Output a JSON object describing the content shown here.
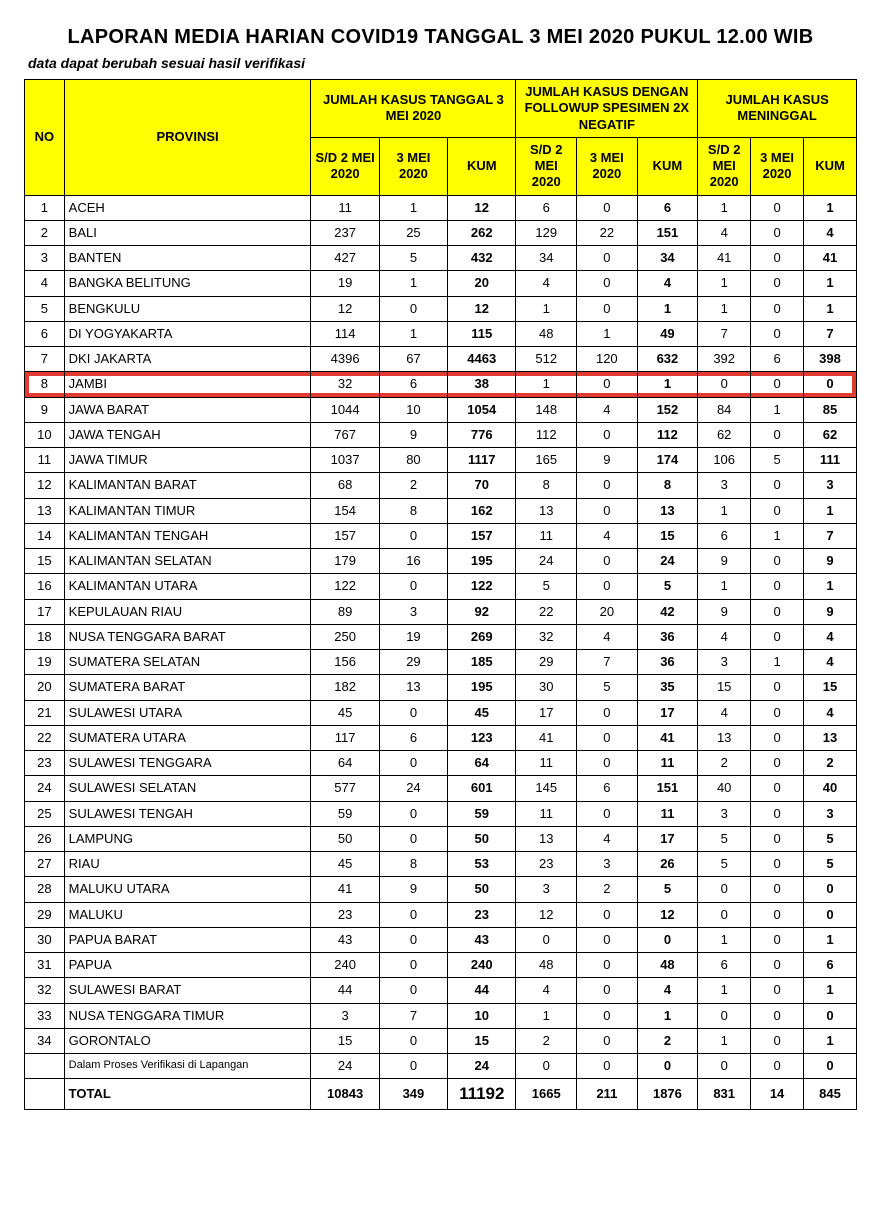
{
  "title": "LAPORAN MEDIA HARIAN COVID19 TANGGAL 3 MEI 2020 PUKUL 12.00 WIB",
  "subtitle": "data dapat berubah sesuai hasil verifikasi",
  "headers": {
    "no": "NO",
    "provinsi": "PROVINSI",
    "group1": "JUMLAH KASUS TANGGAL 3 MEI 2020",
    "group2": "JUMLAH KASUS DENGAN FOLLOWUP SPESIMEN 2X NEGATIF",
    "group3": "JUMLAH KASUS MENINGGAL",
    "sd2": "S/D 2 MEI 2020",
    "d3": "3 MEI 2020",
    "kum": "KUM"
  },
  "highlight_row_index": 7,
  "highlight_color": "#e23b33",
  "header_bg": "#ffff00",
  "verif_label": "Dalam Proses Verifikasi di Lapangan",
  "total_label": "TOTAL",
  "rows": [
    {
      "no": 1,
      "prov": "ACEH",
      "a": 11,
      "b": 1,
      "c": 12,
      "d": 6,
      "e": 0,
      "f": 6,
      "g": 1,
      "h": 0,
      "i": 1
    },
    {
      "no": 2,
      "prov": "BALI",
      "a": 237,
      "b": 25,
      "c": 262,
      "d": 129,
      "e": 22,
      "f": 151,
      "g": 4,
      "h": 0,
      "i": 4
    },
    {
      "no": 3,
      "prov": "BANTEN",
      "a": 427,
      "b": 5,
      "c": 432,
      "d": 34,
      "e": 0,
      "f": 34,
      "g": 41,
      "h": 0,
      "i": 41
    },
    {
      "no": 4,
      "prov": "BANGKA BELITUNG",
      "a": 19,
      "b": 1,
      "c": 20,
      "d": 4,
      "e": 0,
      "f": 4,
      "g": 1,
      "h": 0,
      "i": 1
    },
    {
      "no": 5,
      "prov": "BENGKULU",
      "a": 12,
      "b": 0,
      "c": 12,
      "d": 1,
      "e": 0,
      "f": 1,
      "g": 1,
      "h": 0,
      "i": 1
    },
    {
      "no": 6,
      "prov": "DI YOGYAKARTA",
      "a": 114,
      "b": 1,
      "c": 115,
      "d": 48,
      "e": 1,
      "f": 49,
      "g": 7,
      "h": 0,
      "i": 7
    },
    {
      "no": 7,
      "prov": "DKI JAKARTA",
      "a": 4396,
      "b": 67,
      "c": 4463,
      "d": 512,
      "e": 120,
      "f": 632,
      "g": 392,
      "h": 6,
      "i": 398
    },
    {
      "no": 8,
      "prov": "JAMBI",
      "a": 32,
      "b": 6,
      "c": 38,
      "d": 1,
      "e": 0,
      "f": 1,
      "g": 0,
      "h": 0,
      "i": 0
    },
    {
      "no": 9,
      "prov": "JAWA BARAT",
      "a": 1044,
      "b": 10,
      "c": 1054,
      "d": 148,
      "e": 4,
      "f": 152,
      "g": 84,
      "h": 1,
      "i": 85
    },
    {
      "no": 10,
      "prov": "JAWA TENGAH",
      "a": 767,
      "b": 9,
      "c": 776,
      "d": 112,
      "e": 0,
      "f": 112,
      "g": 62,
      "h": 0,
      "i": 62
    },
    {
      "no": 11,
      "prov": "JAWA TIMUR",
      "a": 1037,
      "b": 80,
      "c": 1117,
      "d": 165,
      "e": 9,
      "f": 174,
      "g": 106,
      "h": 5,
      "i": 111
    },
    {
      "no": 12,
      "prov": "KALIMANTAN BARAT",
      "a": 68,
      "b": 2,
      "c": 70,
      "d": 8,
      "e": 0,
      "f": 8,
      "g": 3,
      "h": 0,
      "i": 3
    },
    {
      "no": 13,
      "prov": "KALIMANTAN TIMUR",
      "a": 154,
      "b": 8,
      "c": 162,
      "d": 13,
      "e": 0,
      "f": 13,
      "g": 1,
      "h": 0,
      "i": 1
    },
    {
      "no": 14,
      "prov": "KALIMANTAN TENGAH",
      "a": 157,
      "b": 0,
      "c": 157,
      "d": 11,
      "e": 4,
      "f": 15,
      "g": 6,
      "h": 1,
      "i": 7
    },
    {
      "no": 15,
      "prov": "KALIMANTAN SELATAN",
      "a": 179,
      "b": 16,
      "c": 195,
      "d": 24,
      "e": 0,
      "f": 24,
      "g": 9,
      "h": 0,
      "i": 9
    },
    {
      "no": 16,
      "prov": "KALIMANTAN UTARA",
      "a": 122,
      "b": 0,
      "c": 122,
      "d": 5,
      "e": 0,
      "f": 5,
      "g": 1,
      "h": 0,
      "i": 1
    },
    {
      "no": 17,
      "prov": "KEPULAUAN RIAU",
      "a": 89,
      "b": 3,
      "c": 92,
      "d": 22,
      "e": 20,
      "f": 42,
      "g": 9,
      "h": 0,
      "i": 9
    },
    {
      "no": 18,
      "prov": "NUSA TENGGARA BARAT",
      "a": 250,
      "b": 19,
      "c": 269,
      "d": 32,
      "e": 4,
      "f": 36,
      "g": 4,
      "h": 0,
      "i": 4
    },
    {
      "no": 19,
      "prov": "SUMATERA SELATAN",
      "a": 156,
      "b": 29,
      "c": 185,
      "d": 29,
      "e": 7,
      "f": 36,
      "g": 3,
      "h": 1,
      "i": 4
    },
    {
      "no": 20,
      "prov": "SUMATERA BARAT",
      "a": 182,
      "b": 13,
      "c": 195,
      "d": 30,
      "e": 5,
      "f": 35,
      "g": 15,
      "h": 0,
      "i": 15
    },
    {
      "no": 21,
      "prov": "SULAWESI UTARA",
      "a": 45,
      "b": 0,
      "c": 45,
      "d": 17,
      "e": 0,
      "f": 17,
      "g": 4,
      "h": 0,
      "i": 4
    },
    {
      "no": 22,
      "prov": "SUMATERA UTARA",
      "a": 117,
      "b": 6,
      "c": 123,
      "d": 41,
      "e": 0,
      "f": 41,
      "g": 13,
      "h": 0,
      "i": 13
    },
    {
      "no": 23,
      "prov": "SULAWESI TENGGARA",
      "a": 64,
      "b": 0,
      "c": 64,
      "d": 11,
      "e": 0,
      "f": 11,
      "g": 2,
      "h": 0,
      "i": 2
    },
    {
      "no": 24,
      "prov": "SULAWESI SELATAN",
      "a": 577,
      "b": 24,
      "c": 601,
      "d": 145,
      "e": 6,
      "f": 151,
      "g": 40,
      "h": 0,
      "i": 40
    },
    {
      "no": 25,
      "prov": "SULAWESI TENGAH",
      "a": 59,
      "b": 0,
      "c": 59,
      "d": 11,
      "e": 0,
      "f": 11,
      "g": 3,
      "h": 0,
      "i": 3
    },
    {
      "no": 26,
      "prov": "LAMPUNG",
      "a": 50,
      "b": 0,
      "c": 50,
      "d": 13,
      "e": 4,
      "f": 17,
      "g": 5,
      "h": 0,
      "i": 5
    },
    {
      "no": 27,
      "prov": "RIAU",
      "a": 45,
      "b": 8,
      "c": 53,
      "d": 23,
      "e": 3,
      "f": 26,
      "g": 5,
      "h": 0,
      "i": 5
    },
    {
      "no": 28,
      "prov": "MALUKU UTARA",
      "a": 41,
      "b": 9,
      "c": 50,
      "d": 3,
      "e": 2,
      "f": 5,
      "g": 0,
      "h": 0,
      "i": 0
    },
    {
      "no": 29,
      "prov": "MALUKU",
      "a": 23,
      "b": 0,
      "c": 23,
      "d": 12,
      "e": 0,
      "f": 12,
      "g": 0,
      "h": 0,
      "i": 0
    },
    {
      "no": 30,
      "prov": "PAPUA BARAT",
      "a": 43,
      "b": 0,
      "c": 43,
      "d": 0,
      "e": 0,
      "f": 0,
      "g": 1,
      "h": 0,
      "i": 1
    },
    {
      "no": 31,
      "prov": "PAPUA",
      "a": 240,
      "b": 0,
      "c": 240,
      "d": 48,
      "e": 0,
      "f": 48,
      "g": 6,
      "h": 0,
      "i": 6
    },
    {
      "no": 32,
      "prov": "SULAWESI BARAT",
      "a": 44,
      "b": 0,
      "c": 44,
      "d": 4,
      "e": 0,
      "f": 4,
      "g": 1,
      "h": 0,
      "i": 1
    },
    {
      "no": 33,
      "prov": "NUSA TENGGARA TIMUR",
      "a": 3,
      "b": 7,
      "c": 10,
      "d": 1,
      "e": 0,
      "f": 1,
      "g": 0,
      "h": 0,
      "i": 0
    },
    {
      "no": 34,
      "prov": "GORONTALO",
      "a": 15,
      "b": 0,
      "c": 15,
      "d": 2,
      "e": 0,
      "f": 2,
      "g": 1,
      "h": 0,
      "i": 1
    }
  ],
  "verif_row": {
    "a": 24,
    "b": 0,
    "c": 24,
    "d": 0,
    "e": 0,
    "f": 0,
    "g": 0,
    "h": 0,
    "i": 0
  },
  "total_row": {
    "a": 10843,
    "b": 349,
    "c": 11192,
    "d": 1665,
    "e": 211,
    "f": 1876,
    "g": 831,
    "h": 14,
    "i": 845
  }
}
